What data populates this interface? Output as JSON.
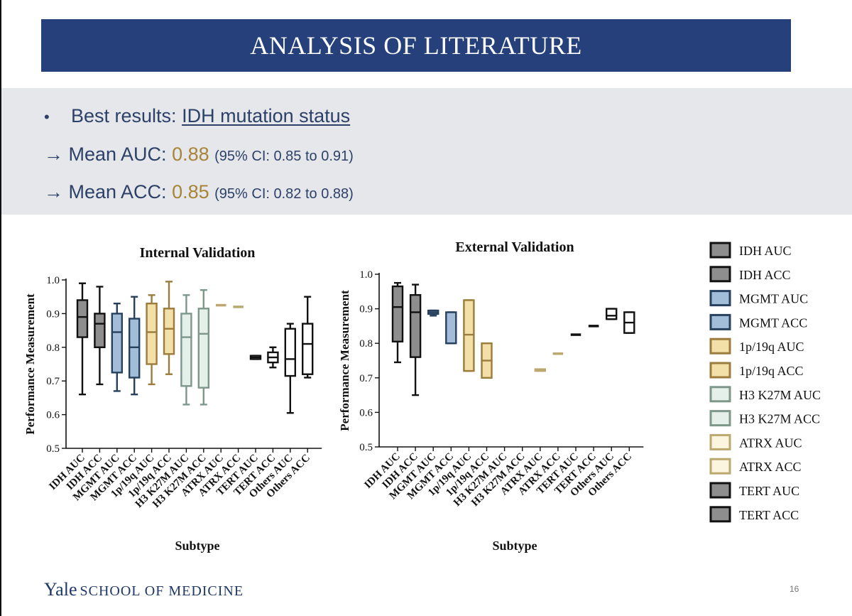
{
  "slide": {
    "title": "ANALYSIS OF LITERATURE",
    "bullet_symbol": "•",
    "best_results_label": "Best results: ",
    "best_results_value": "IDH mutation status",
    "auc_prefix": "→ Mean AUC: ",
    "auc_value": "0.88",
    "auc_ci": "(95% CI: 0.85 to 0.91)",
    "acc_prefix": "→ Mean ACC: ",
    "acc_value": "0.85",
    "acc_ci": "(95% CI: 0.82 to 0.88)",
    "footer_yale": "Yale",
    "footer_school": "SCHOOL OF MEDICINE",
    "page_number": "16"
  },
  "colors": {
    "title_bar": "#25407a",
    "summary_bg": "#e5e7eb",
    "summary_text": "#2d4168",
    "highlight": "#a98438"
  },
  "chart_data": [
    {
      "type": "boxplot",
      "title": "Internal Validation",
      "xlabel": "Subtype",
      "ylabel": "Performance Measurement",
      "ylim": [
        0.5,
        1.0
      ],
      "yticks": [
        0.5,
        0.6,
        0.7,
        0.8,
        0.9,
        1.0
      ],
      "categories": [
        "IDH AUC",
        "IDH ACC",
        "MGMT AUC",
        "MGMT ACC",
        "1p/19q AUC",
        "1p/19q ACC",
        "H3 K27M AUC",
        "H3 K27M ACC",
        "ATRX AUC",
        "ATRX ACC",
        "TERT AUC",
        "TERT ACC",
        "Others AUC",
        "Others ACC"
      ],
      "boxes": [
        {
          "min": 0.66,
          "q1": 0.83,
          "median": 0.89,
          "q3": 0.94,
          "max": 0.99
        },
        {
          "min": 0.69,
          "q1": 0.8,
          "median": 0.87,
          "q3": 0.9,
          "max": 0.98
        },
        {
          "min": 0.67,
          "q1": 0.725,
          "median": 0.845,
          "q3": 0.9,
          "max": 0.93
        },
        {
          "min": 0.66,
          "q1": 0.71,
          "median": 0.8,
          "q3": 0.885,
          "max": 0.95
        },
        {
          "min": 0.69,
          "q1": 0.75,
          "median": 0.845,
          "q3": 0.93,
          "max": 0.955
        },
        {
          "min": 0.72,
          "q1": 0.78,
          "median": 0.855,
          "q3": 0.915,
          "max": 0.995
        },
        {
          "min": 0.63,
          "q1": 0.685,
          "median": 0.83,
          "q3": 0.9,
          "max": 0.955
        },
        {
          "min": 0.63,
          "q1": 0.68,
          "median": 0.84,
          "q3": 0.915,
          "max": 0.97
        },
        {
          "min": 0.925,
          "q1": 0.925,
          "median": 0.925,
          "q3": 0.925,
          "max": 0.925
        },
        {
          "min": 0.92,
          "q1": 0.92,
          "median": 0.92,
          "q3": 0.92,
          "max": 0.92
        },
        {
          "min": 0.765,
          "q1": 0.765,
          "median": 0.77,
          "q3": 0.775,
          "max": 0.775
        },
        {
          "min": 0.74,
          "q1": 0.755,
          "median": 0.77,
          "q3": 0.785,
          "max": 0.8
        },
        {
          "min": 0.605,
          "q1": 0.715,
          "median": 0.765,
          "q3": 0.855,
          "max": 0.87
        },
        {
          "min": 0.71,
          "q1": 0.72,
          "median": 0.81,
          "q3": 0.87,
          "max": 0.95
        }
      ]
    },
    {
      "type": "boxplot",
      "title": "External Validation",
      "xlabel": "Subtype",
      "ylabel": "Performance Measurement",
      "ylim": [
        0.5,
        1.0
      ],
      "yticks": [
        0.5,
        0.6,
        0.7,
        0.8,
        0.9,
        1.0
      ],
      "categories": [
        "IDH AUC",
        "IDH ACC",
        "MGMT AUC",
        "MGMT ACC",
        "1p/19q AUC",
        "1p/19q ACC",
        "H3 K27M AUC",
        "H3 K27M ACC",
        "ATRX AUC",
        "ATRX ACC",
        "TERT AUC",
        "TERT ACC",
        "Others AUC",
        "Others ACC"
      ],
      "boxes": [
        {
          "min": 0.745,
          "q1": 0.805,
          "median": 0.905,
          "q3": 0.965,
          "max": 0.975
        },
        {
          "min": 0.65,
          "q1": 0.76,
          "median": 0.89,
          "q3": 0.94,
          "max": 0.97
        },
        {
          "min": 0.88,
          "q1": 0.885,
          "median": 0.89,
          "q3": 0.895,
          "max": 0.895
        },
        {
          "min": 0.8,
          "q1": 0.8,
          "median": 0.8,
          "q3": 0.89,
          "max": 0.89
        },
        {
          "min": 0.72,
          "q1": 0.72,
          "median": 0.825,
          "q3": 0.925,
          "max": 0.925
        },
        {
          "min": 0.7,
          "q1": 0.7,
          "median": 0.75,
          "q3": 0.8,
          "max": 0.8
        },
        null,
        null,
        {
          "min": 0.72,
          "q1": 0.72,
          "median": 0.722,
          "q3": 0.725,
          "max": 0.725
        },
        {
          "min": 0.77,
          "q1": 0.77,
          "median": 0.77,
          "q3": 0.77,
          "max": 0.77
        },
        {
          "min": 0.825,
          "q1": 0.825,
          "median": 0.825,
          "q3": 0.825,
          "max": 0.825
        },
        {
          "min": 0.85,
          "q1": 0.85,
          "median": 0.85,
          "q3": 0.85,
          "max": 0.85
        },
        {
          "min": 0.87,
          "q1": 0.87,
          "median": 0.88,
          "q3": 0.9,
          "max": 0.9
        },
        {
          "min": 0.83,
          "q1": 0.83,
          "median": 0.86,
          "q3": 0.89,
          "max": 0.89
        }
      ]
    }
  ],
  "series_styles": [
    {
      "fill": "#8e8e8e",
      "stroke": "#111111"
    },
    {
      "fill": "#8e8e8e",
      "stroke": "#111111"
    },
    {
      "fill": "#a2bdd8",
      "stroke": "#27405e"
    },
    {
      "fill": "#a2bdd8",
      "stroke": "#27405e"
    },
    {
      "fill": "#f3e0a8",
      "stroke": "#9b7c3d"
    },
    {
      "fill": "#f3e0a8",
      "stroke": "#9b7c3d"
    },
    {
      "fill": "#e6f0ea",
      "stroke": "#7d978b"
    },
    {
      "fill": "#e6f0ea",
      "stroke": "#7d978b"
    },
    {
      "fill": "#fbf4df",
      "stroke": "#bba86f"
    },
    {
      "fill": "#fbf4df",
      "stroke": "#bba86f"
    },
    {
      "fill": "#ffffff",
      "stroke": "#111111"
    },
    {
      "fill": "#ffffff",
      "stroke": "#111111"
    },
    {
      "fill": "#ffffff",
      "stroke": "#111111"
    },
    {
      "fill": "#ffffff",
      "stroke": "#111111"
    }
  ],
  "legend": [
    {
      "label": "IDH AUC",
      "fill": "#8e8e8e",
      "stroke": "#111111"
    },
    {
      "label": "IDH ACC",
      "fill": "#8e8e8e",
      "stroke": "#111111"
    },
    {
      "label": "MGMT AUC",
      "fill": "#a2bdd8",
      "stroke": "#27405e"
    },
    {
      "label": "MGMT ACC",
      "fill": "#a2bdd8",
      "stroke": "#27405e"
    },
    {
      "label": "1p/19q AUC",
      "fill": "#f3e0a8",
      "stroke": "#9b7c3d"
    },
    {
      "label": "1p/19q ACC",
      "fill": "#f3e0a8",
      "stroke": "#9b7c3d"
    },
    {
      "label": "H3 K27M AUC",
      "fill": "#e6f0ea",
      "stroke": "#7d978b"
    },
    {
      "label": "H3 K27M ACC",
      "fill": "#e6f0ea",
      "stroke": "#7d978b"
    },
    {
      "label": "ATRX AUC",
      "fill": "#fbf4df",
      "stroke": "#bba86f"
    },
    {
      "label": "ATRX ACC",
      "fill": "#fbf4df",
      "stroke": "#bba86f"
    },
    {
      "label": "TERT AUC",
      "fill": "#8e8e8e",
      "stroke": "#111111"
    },
    {
      "label": "TERT ACC",
      "fill": "#8e8e8e",
      "stroke": "#111111"
    }
  ]
}
